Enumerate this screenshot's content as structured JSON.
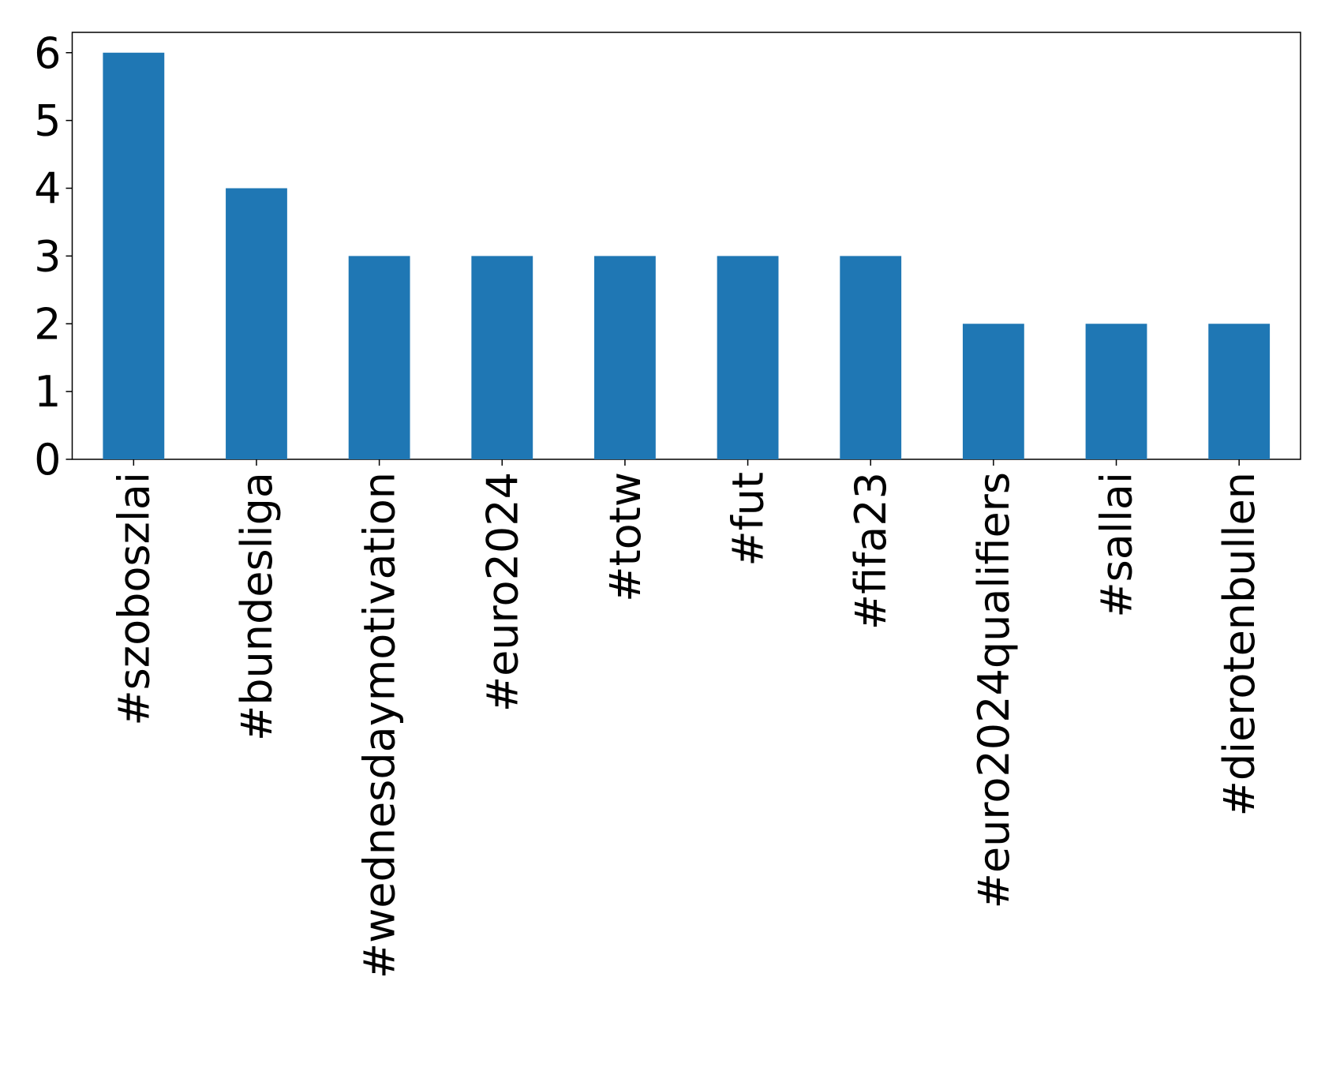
{
  "chart_data": {
    "type": "bar",
    "categories": [
      "#szoboszlai",
      "#bundesliga",
      "#wednesdaymotivation",
      "#euro2024",
      "#totw",
      "#fut",
      "#fifa23",
      "#euro2024qualifiers",
      "#sallai",
      "#dierotenbullen"
    ],
    "values": [
      6,
      4,
      3,
      3,
      3,
      3,
      3,
      2,
      2,
      2
    ],
    "color": "#1f77b4",
    "ylim": [
      0,
      6.3
    ],
    "yticks": [
      0,
      1,
      2,
      3,
      4,
      5,
      6
    ],
    "grid": false
  }
}
